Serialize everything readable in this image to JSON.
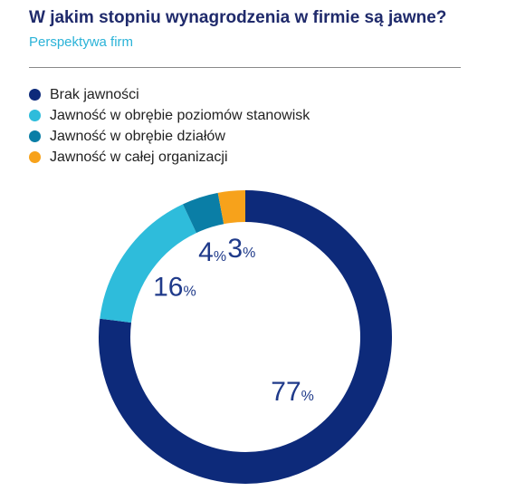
{
  "header": {
    "title": "W jakim stopniu wynagrodzenia w firmie są jawne?",
    "subtitle": "Perspektywa firm"
  },
  "chart_data": {
    "type": "pie",
    "style": "donut",
    "title": "W jakim stopniu wynagrodzenia w firmie są jawne?",
    "subtitle": "Perspektywa firm",
    "legend_position": "top-left",
    "value_unit": "%",
    "slices": [
      {
        "label": "Brak jawności",
        "value": 77,
        "color": "#0d2a7a"
      },
      {
        "label": "Jawność w obrębie poziomów stanowisk",
        "value": 16,
        "color": "#2ebcdb"
      },
      {
        "label": "Jawność w obrębie działów",
        "value": 4,
        "color": "#0a7ea6"
      },
      {
        "label": "Jawność w całej organizacji",
        "value": 3,
        "color": "#f7a21b"
      }
    ]
  }
}
